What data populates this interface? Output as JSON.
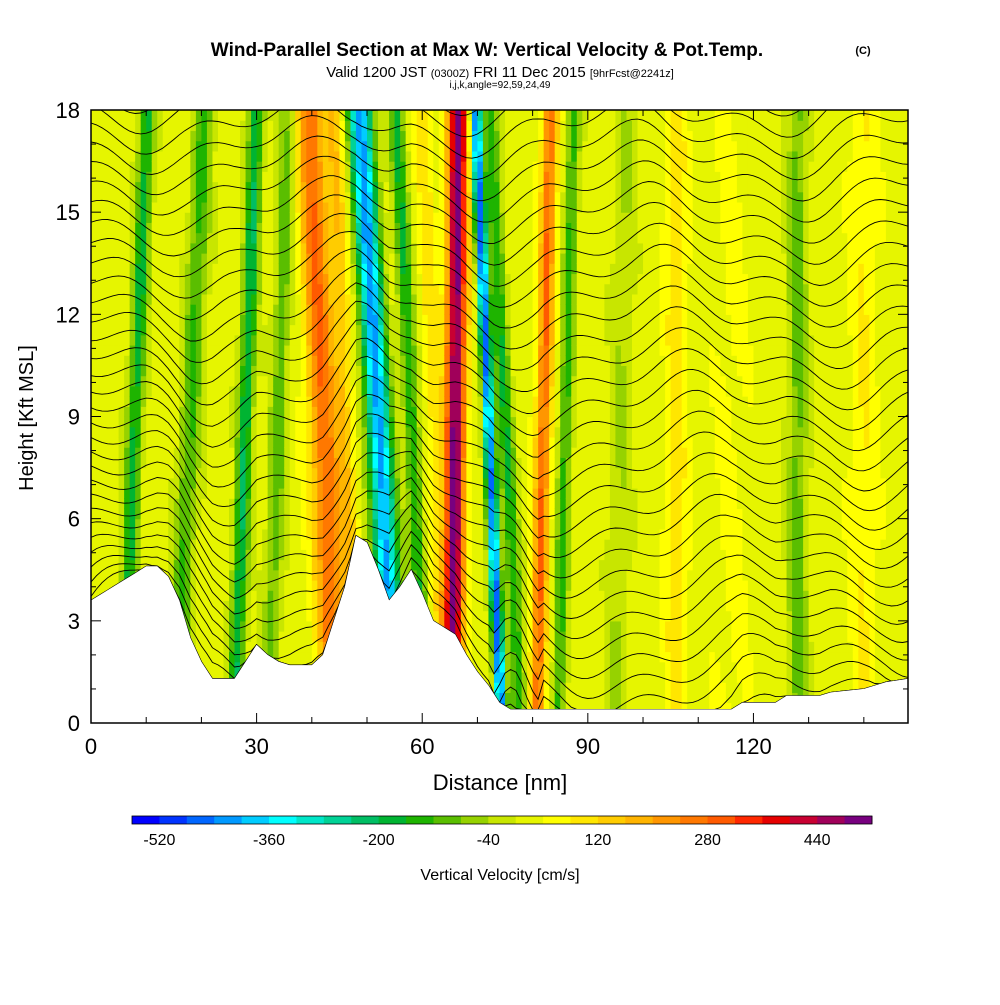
{
  "chart_data": {
    "type": "heatmap",
    "title": "Wind-Parallel Section at Max W: Vertical Velocity & Pot.Temp.",
    "title_mark": "(C)",
    "subtitle": {
      "valid": "Valid 1200 JST",
      "utc": "(0300Z)",
      "date": "FRI 11 Dec 2015",
      "fcst": "[9hrFcst@2241z]",
      "params": "i,j,k,angle=92,59,24,49"
    },
    "xlabel": "Distance [nm]",
    "ylabel": "Height [Kft MSL]",
    "xlim": [
      0,
      148
    ],
    "ylim": [
      0,
      18
    ],
    "x_ticks": [
      0,
      30,
      60,
      90,
      120
    ],
    "y_ticks": [
      0,
      3,
      6,
      9,
      12,
      15,
      18
    ],
    "grid": false,
    "colorbar": {
      "label": "Vertical Velocity [cm/s]",
      "min": -560,
      "max": 520,
      "step": 40,
      "tick_labels": [
        "-520",
        "-360",
        "-200",
        "-40",
        "120",
        "280",
        "440"
      ],
      "tick_values": [
        -520,
        -360,
        -200,
        -40,
        120,
        280,
        440
      ],
      "colors": [
        "#0000ff",
        "#0033ff",
        "#0066ff",
        "#0099ff",
        "#00ccff",
        "#00ffff",
        "#00e6c8",
        "#00d296",
        "#00be64",
        "#00b432",
        "#1eb400",
        "#5abe00",
        "#96d200",
        "#c8e600",
        "#e6f500",
        "#ffff00",
        "#ffe600",
        "#ffcc00",
        "#ffb400",
        "#ff9600",
        "#ff7800",
        "#ff5a00",
        "#ff2800",
        "#e60000",
        "#c80032",
        "#a0005a",
        "#78007f"
      ]
    },
    "w_bands": [
      {
        "x": 8,
        "w": -200,
        "tilt": 0.25,
        "width": 1.4
      },
      {
        "x": 18,
        "w": -150,
        "tilt": 0.28,
        "width": 1.8
      },
      {
        "x": 28,
        "w": -220,
        "tilt": 0.22,
        "width": 1.4
      },
      {
        "x": 34,
        "w": -120,
        "tilt": 0.2,
        "width": 1.6
      },
      {
        "x": 42,
        "w": 260,
        "tilt": -0.26,
        "width": 2.6
      },
      {
        "x": 46,
        "w": 120,
        "tilt": -0.22,
        "width": 1.6
      },
      {
        "x": 52,
        "w": -440,
        "tilt": -0.36,
        "width": 2.2
      },
      {
        "x": 58,
        "w": -180,
        "tilt": -0.3,
        "width": 1.4
      },
      {
        "x": 62,
        "w": 80,
        "tilt": -0.2,
        "width": 1.6
      },
      {
        "x": 66,
        "w": 480,
        "tilt": 0.06,
        "width": 1.8
      },
      {
        "x": 72,
        "w": -480,
        "tilt": -0.26,
        "width": 1.0
      },
      {
        "x": 75,
        "w": -180,
        "tilt": -0.3,
        "width": 1.4
      },
      {
        "x": 82,
        "w": 260,
        "tilt": 0.14,
        "width": 1.4
      },
      {
        "x": 86,
        "w": -160,
        "tilt": 0.16,
        "width": 1.2
      },
      {
        "x": 96,
        "w": -60,
        "tilt": 0.1,
        "width": 2.0
      },
      {
        "x": 106,
        "w": 80,
        "tilt": 0.0,
        "width": 2.0
      },
      {
        "x": 116,
        "w": 30,
        "tilt": 0.0,
        "width": 3.0
      },
      {
        "x": 128,
        "w": -120,
        "tilt": 0.0,
        "width": 1.8
      },
      {
        "x": 140,
        "w": 60,
        "tilt": 0.0,
        "width": 2.5
      }
    ],
    "terrain": [
      [
        0,
        3.6
      ],
      [
        2,
        3.8
      ],
      [
        4,
        4.0
      ],
      [
        6,
        4.2
      ],
      [
        8,
        4.4
      ],
      [
        10,
        4.6
      ],
      [
        12,
        4.6
      ],
      [
        14,
        4.3
      ],
      [
        16,
        3.6
      ],
      [
        18,
        2.5
      ],
      [
        20,
        1.8
      ],
      [
        22,
        1.3
      ],
      [
        26,
        1.3
      ],
      [
        28,
        1.8
      ],
      [
        30,
        2.3
      ],
      [
        32,
        2.0
      ],
      [
        34,
        1.8
      ],
      [
        36,
        1.7
      ],
      [
        40,
        1.7
      ],
      [
        42,
        2.0
      ],
      [
        44,
        3.0
      ],
      [
        46,
        4.0
      ],
      [
        48,
        5.5
      ],
      [
        50,
        5.3
      ],
      [
        52,
        4.5
      ],
      [
        54,
        3.6
      ],
      [
        56,
        4.0
      ],
      [
        58,
        4.5
      ],
      [
        60,
        3.8
      ],
      [
        62,
        3.0
      ],
      [
        64,
        2.8
      ],
      [
        66,
        2.6
      ],
      [
        68,
        2.0
      ],
      [
        70,
        1.5
      ],
      [
        72,
        1.1
      ],
      [
        74,
        0.6
      ],
      [
        76,
        0.4
      ],
      [
        80,
        0.4
      ],
      [
        90,
        0.4
      ],
      [
        100,
        0.4
      ],
      [
        110,
        0.4
      ],
      [
        116,
        0.4
      ],
      [
        118,
        0.6
      ],
      [
        124,
        0.6
      ],
      [
        126,
        0.8
      ],
      [
        132,
        0.8
      ],
      [
        134,
        0.9
      ],
      [
        140,
        1.0
      ],
      [
        144,
        1.2
      ],
      [
        148,
        1.3
      ]
    ],
    "theta_contours": {
      "count": 34,
      "spacing_kft": 0.62,
      "offset_kft": -1.8
    }
  }
}
